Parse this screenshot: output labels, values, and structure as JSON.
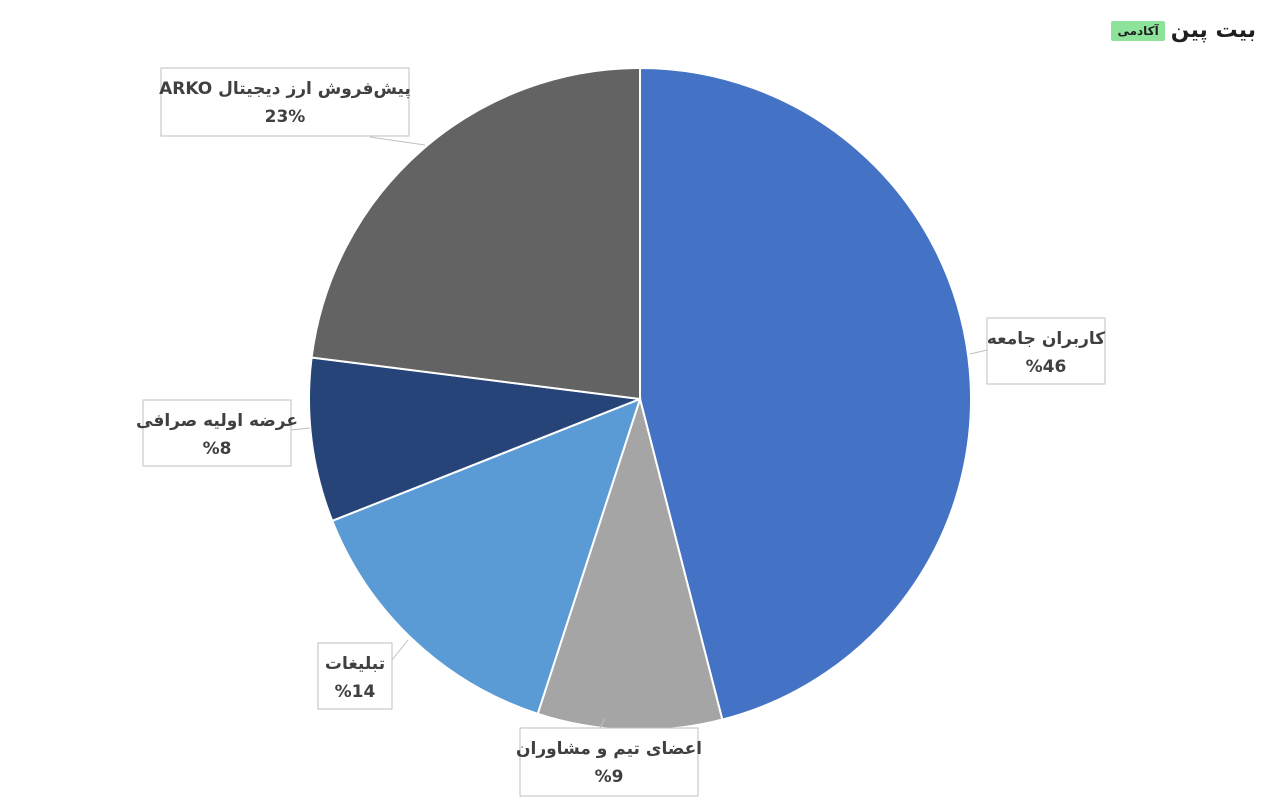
{
  "brand": {
    "name": "بیت پین",
    "tag": "آکادمی",
    "tag_color": "#8ee39b"
  },
  "chart_data": {
    "type": "pie",
    "start_angle_deg": 0,
    "direction": "clockwise",
    "slices": [
      {
        "label": "کاربران جامعه",
        "value": 46,
        "display": "%46",
        "color": "#4472c4"
      },
      {
        "label": "اعضای تیم و مشاوران",
        "value": 9,
        "display": "%9",
        "color": "#a5a5a5"
      },
      {
        "label": "تبلیغات",
        "value": 14,
        "display": "%14",
        "color": "#5b9bd5"
      },
      {
        "label": "عرضه اولیه صرافی",
        "value": 8,
        "display": "%8",
        "color": "#264478"
      },
      {
        "label": "پیش‌فروش ارز دیجیتال ARKO",
        "value": 23,
        "display": "23%",
        "color": "#636363"
      }
    ]
  }
}
